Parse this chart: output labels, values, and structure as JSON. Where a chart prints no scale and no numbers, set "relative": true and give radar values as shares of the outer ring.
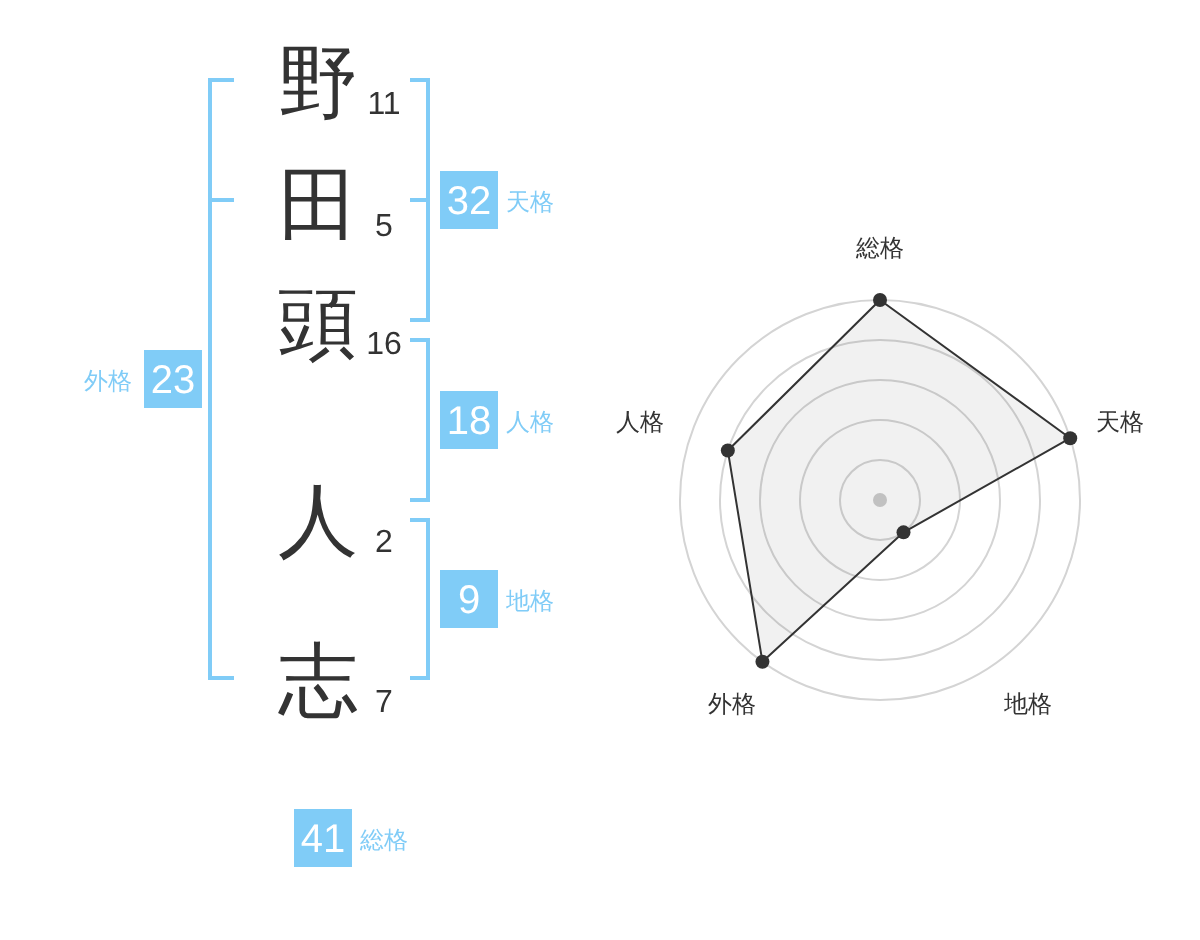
{
  "chart_data": [
    {
      "type": "other",
      "categories": [
        "野",
        "田",
        "頭",
        "人",
        "志"
      ],
      "values": [
        11,
        5,
        16,
        2,
        7
      ],
      "data_labels": true
    },
    {
      "type": "other",
      "categories": [
        "天格",
        "人格",
        "地格",
        "外格",
        "総格"
      ],
      "values": [
        32,
        18,
        9,
        23,
        41
      ],
      "color": "#80ccf7",
      "data_labels": true
    },
    {
      "type": "radar",
      "relative": true,
      "grid": true,
      "marker": "circle",
      "categories": [
        "総格",
        "天格",
        "地格",
        "外格",
        "人格"
      ],
      "series": [
        {
          "color": "#333333",
          "values": [
            1,
            1,
            0.2,
            1,
            0.8
          ]
        }
      ]
    }
  ]
}
